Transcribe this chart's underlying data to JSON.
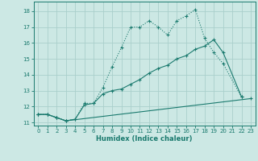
{
  "xlabel": "Humidex (Indice chaleur)",
  "bg_color": "#cce8e4",
  "grid_color": "#aacfcb",
  "line_color": "#1a7a6e",
  "xlim": [
    -0.5,
    23.5
  ],
  "ylim": [
    10.8,
    18.6
  ],
  "xticks": [
    0,
    1,
    2,
    3,
    4,
    5,
    6,
    7,
    8,
    9,
    10,
    11,
    12,
    13,
    14,
    15,
    16,
    17,
    18,
    19,
    20,
    21,
    22,
    23
  ],
  "yticks": [
    11,
    12,
    13,
    14,
    15,
    16,
    17,
    18
  ],
  "line1_x": [
    0,
    1,
    2,
    3,
    4,
    5,
    6,
    7,
    8,
    9,
    10,
    11,
    12,
    13,
    14,
    15,
    16,
    17,
    18,
    19,
    20,
    22
  ],
  "line1_y": [
    11.5,
    11.5,
    11.3,
    11.1,
    11.2,
    12.2,
    12.2,
    13.2,
    14.5,
    15.7,
    17.0,
    17.0,
    17.4,
    17.0,
    16.5,
    17.4,
    17.7,
    18.1,
    16.3,
    15.4,
    14.7,
    12.6
  ],
  "line2_x": [
    0,
    1,
    2,
    3,
    4,
    5,
    6,
    7,
    8,
    9,
    10,
    11,
    12,
    13,
    14,
    15,
    16,
    17,
    18,
    19,
    20,
    22
  ],
  "line2_y": [
    11.5,
    11.5,
    11.3,
    11.1,
    11.2,
    12.1,
    12.2,
    12.8,
    13.0,
    13.1,
    13.4,
    13.7,
    14.1,
    14.4,
    14.6,
    15.0,
    15.2,
    15.6,
    15.8,
    16.2,
    15.4,
    12.6
  ],
  "line3_x": [
    0,
    1,
    2,
    3,
    23
  ],
  "line3_y": [
    11.5,
    11.5,
    11.3,
    11.1,
    12.5
  ]
}
